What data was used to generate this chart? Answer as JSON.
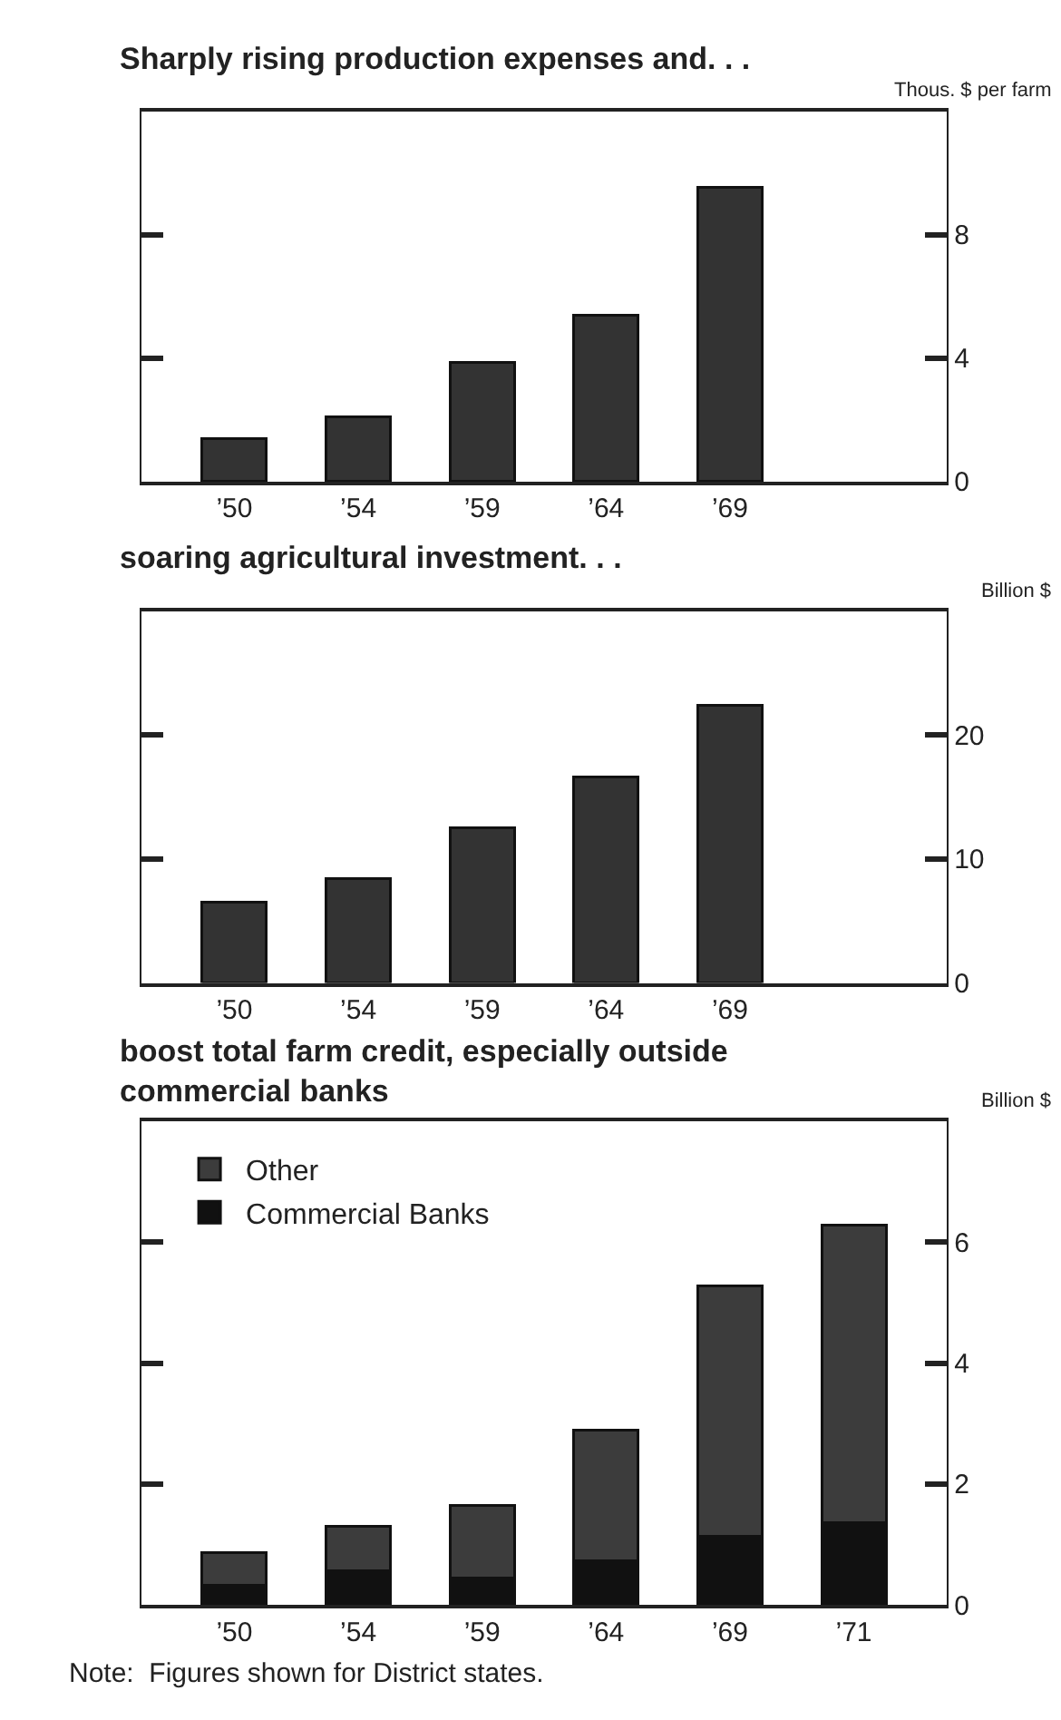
{
  "chart_data": [
    {
      "type": "bar",
      "title": "Sharply rising production expenses and. . .",
      "ylabel": "Thous. $ per farm",
      "categories": [
        "’50",
        "’54",
        "’59",
        "’64",
        "’69",
        null
      ],
      "values": [
        1.4,
        2.1,
        3.85,
        5.4,
        9.55,
        null
      ],
      "color": "#333333",
      "ylim": [
        0,
        12
      ],
      "yticks": [
        0,
        4,
        8
      ]
    },
    {
      "type": "bar",
      "title": "soaring agricultural investment. . .",
      "ylabel": "Billion $",
      "categories": [
        "’50",
        "’54",
        "’59",
        "’64",
        "’69",
        null
      ],
      "values": [
        6.5,
        8.4,
        12.5,
        16.6,
        22.4,
        null
      ],
      "color": "#333333",
      "ylim": [
        0,
        30
      ],
      "yticks": [
        0,
        10,
        20
      ]
    },
    {
      "type": "bar",
      "title": "boost total farm credit, especially outside\ncommercial banks",
      "ylabel": "Billion $",
      "categories": [
        "’50",
        "’54",
        "’59",
        "’64",
        "’69",
        "’71"
      ],
      "stacked": true,
      "series": [
        {
          "name": "Commercial Banks",
          "color": "#111111",
          "values": [
            0.32,
            0.56,
            0.44,
            0.73,
            1.14,
            1.36
          ]
        },
        {
          "name": "Other",
          "color": "#3c3c3c",
          "values": [
            0.55,
            0.74,
            1.2,
            2.16,
            4.14,
            4.93
          ]
        }
      ],
      "ylim": [
        0,
        8
      ],
      "yticks": [
        0,
        2,
        4,
        6
      ],
      "legend": "top left",
      "annotations": [
        "Note:  Figures shown for District states."
      ]
    }
  ]
}
